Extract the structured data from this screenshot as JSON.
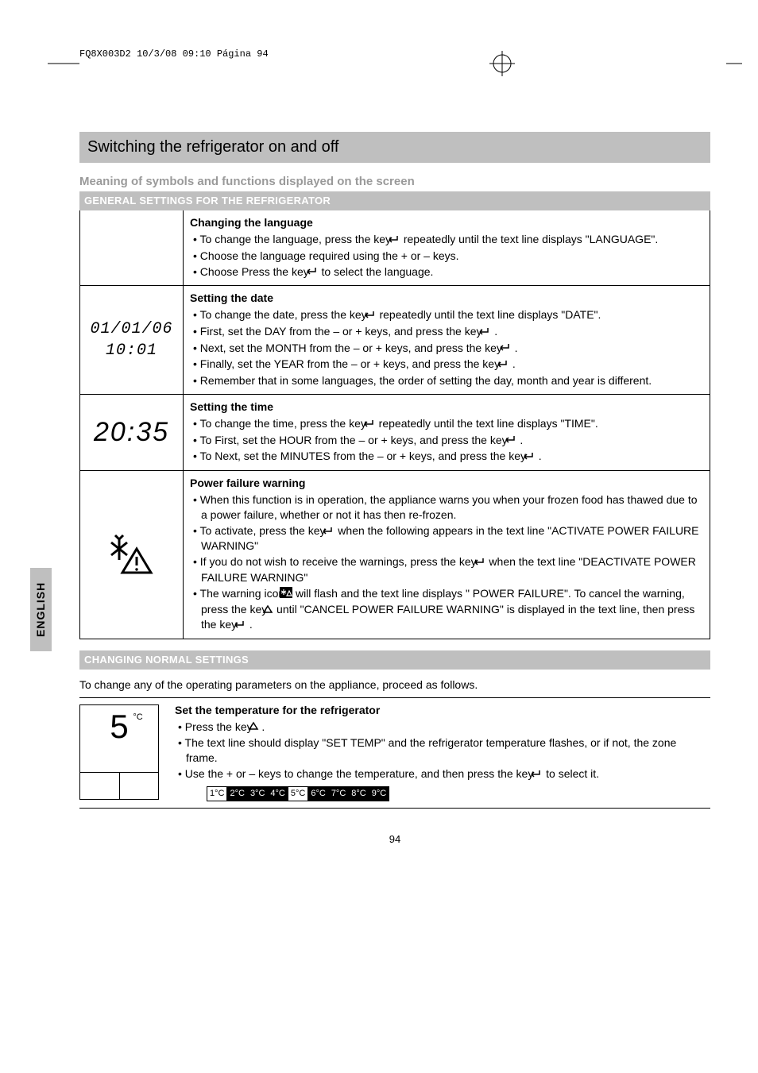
{
  "doc_header": "FQ8X003D2  10/3/08  09:10  Página 94",
  "page_title": "Switching the refrigerator on and off",
  "side_tab": "ENGLISH",
  "subheader": "Meaning of symbols and functions displayed on the screen",
  "band1": "GENERAL SETTINGS FOR THE REFRIGERATOR",
  "row_lang": {
    "head": "Changing the language",
    "b1_a": "To change the language, press the key ",
    "b1_b": "  repeatedly until the text line displays \"LANGUAGE\".",
    "b2": "Choose the language required using the + or – keys.",
    "b3_a": "Choose Press the key ",
    "b3_b": " to select the language."
  },
  "row_date": {
    "icon_text": "01/01/06 10:01",
    "head": "Setting the date",
    "b1_a": "To change the date, press the key ",
    "b1_b": "  repeatedly until the text line displays \"DATE\".",
    "b2_a": "First, set the DAY from the – or + keys, and press the key ",
    "b2_b": " .",
    "b3_a": "Next, set the MONTH from the – or + keys, and press the key ",
    "b3_b": " .",
    "b4_a": "Finally, set the YEAR from the – or + keys, and press the key ",
    "b4_b": " .",
    "b5": "Remember that in some languages, the order of setting the day, month and year is different."
  },
  "row_time": {
    "icon_text": "20:35",
    "head": "Setting the time",
    "b1_a": "To change the time, press the key ",
    "b1_b": " repeatedly until the text line displays \"TIME\".",
    "b2_a": "To First, set the HOUR from the – or + keys, and press the key ",
    "b2_b": " .",
    "b3_a": "To Next, set the MINUTES from the – or + keys, and press the key ",
    "b3_b": " ."
  },
  "row_power": {
    "head": "Power failure warning",
    "b1": "When this function is in operation, the appliance warns you when your frozen food has thawed due to a power failure, whether or not it has then re-frozen.",
    "b2_a": "To activate, press the key ",
    "b2_b": " when the following appears in the text line \"ACTIVATE POWER FAILURE WARNING\"",
    "b3_a": "If you do not wish to receive the warnings, press the key ",
    "b3_b": " when the text line \"DEACTIVATE POWER FAILURE WARNING\"",
    "b4_a": "The warning icon ",
    "b4_b": " will flash and the text line displays \" POWER FAILURE\". To cancel the warning, press the key ",
    "b4_c": "  until \"CANCEL POWER FAILURE WARNING\" is displayed in the text line, then press the key ",
    "b4_d": " ."
  },
  "band2": "CHANGING NORMAL SETTINGS",
  "changing_intro": "To change any of the operating parameters on the appliance, proceed as follows.",
  "set_temp": {
    "big_digit": "5",
    "deg": "°C",
    "head": "Set the temperature for the refrigerator",
    "b1_a": "Press the key ",
    "b1_b": " .",
    "b2": "The text line should display \"SET TEMP\" and the refrigerator temperature flashes, or if not, the zone frame.",
    "b3_a": "Use the + or – keys to change the temperature, and then press the key ",
    "b3_b": " to select it.",
    "strip": [
      "1°C",
      "2°C",
      "3°C",
      "4°C",
      "5°C",
      "6°C",
      "7°C",
      "8°C",
      "9°C"
    ],
    "strip_inverted": [
      false,
      true,
      true,
      true,
      false,
      true,
      true,
      true,
      true
    ]
  },
  "page_number": "94",
  "colors": {
    "band_bg": "#bfbfbf",
    "band_text_white": "#ffffff",
    "gray_text": "#9a9a9a"
  }
}
